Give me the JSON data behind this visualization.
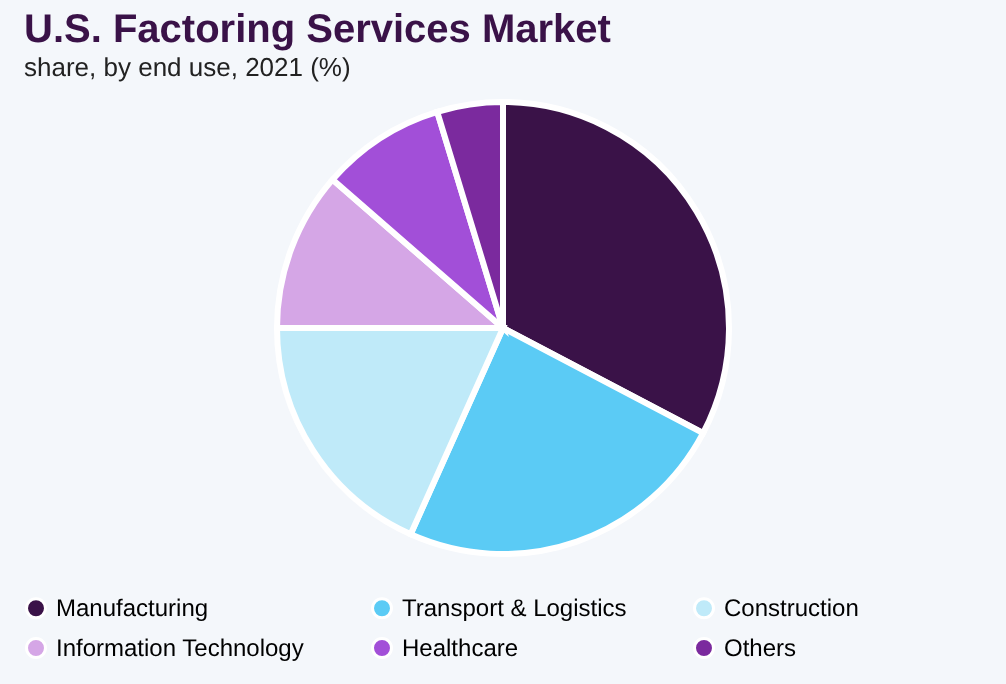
{
  "chart_data": {
    "type": "pie",
    "title": "U.S. Factoring Services Market",
    "subtitle": "share, by end use, 2021 (%)",
    "categories": [
      "Manufacturing",
      "Transport & Logistics",
      "Construction",
      "Information Technology",
      "Healthcare",
      "Others"
    ],
    "values": [
      32.7,
      24,
      18.3,
      11.4,
      8.9,
      4.7
    ],
    "colors": [
      "#3a1248",
      "#5bcbf5",
      "#bfeaf9",
      "#d5a6e6",
      "#a24fd8",
      "#7b2a9e"
    ],
    "legend": "bottom"
  }
}
